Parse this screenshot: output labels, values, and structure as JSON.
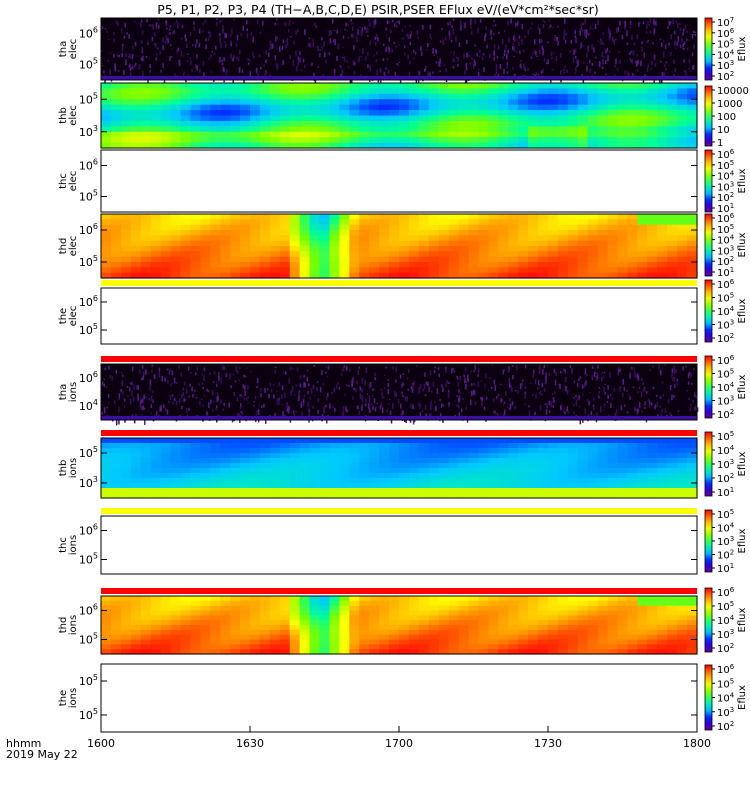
{
  "title": "P5, P1, P2, P3, P4 (TH−A,B,C,D,E) PSIR,PSER EFlux eV/(eV*cm²*sec*sr)",
  "time_axis": {
    "label": "hhmm",
    "date": "2019 May 22",
    "ticks": [
      "1600",
      "1630",
      "1700",
      "1730",
      "1800"
    ]
  },
  "colorbar_label": "Eflux",
  "chart_data": {
    "type": "heatmap",
    "x_range": [
      "16:00",
      "18:00"
    ],
    "colormap": "rainbow (purple → blue → cyan → green → yellow → red), log scale",
    "y_scale": "log",
    "panels": [
      {
        "ylabel": [
          "tha",
          "elec"
        ],
        "ytick_exps": [
          6,
          5
        ],
        "pattern": "noise",
        "bar": null,
        "colorbar": {
          "labels": [
            "10^7",
            "10^6",
            "10^5",
            "10^4",
            "10^3",
            "10^2"
          ],
          "show_eflux": true
        }
      },
      {
        "ylabel": [
          "thb",
          "elec"
        ],
        "ytick_exps": [
          5,
          3
        ],
        "pattern": "thb_elec",
        "bar": null,
        "colorbar": {
          "labels": [
            "10000",
            "1000",
            "100",
            "10",
            "1"
          ],
          "show_eflux": false
        }
      },
      {
        "ylabel": [
          "thc",
          "elec"
        ],
        "ytick_exps": [
          6,
          5
        ],
        "pattern": "empty",
        "bar": null,
        "colorbar": {
          "labels": [
            "10^6",
            "10^5",
            "10^4",
            "10^3",
            "10^2",
            "10^1"
          ],
          "show_eflux": true
        }
      },
      {
        "ylabel": [
          "thd",
          "elec"
        ],
        "ytick_exps": [
          6,
          5
        ],
        "pattern": "thd",
        "bar": null,
        "colorbar": {
          "labels": [
            "10^6",
            "10^5",
            "10^4",
            "10^3",
            "10^2",
            "10^1"
          ],
          "show_eflux": true
        }
      },
      {
        "ylabel": [
          "the",
          "elec"
        ],
        "ytick_exps": [
          6,
          5
        ],
        "pattern": "empty",
        "bar": "#ffff00",
        "colorbar": {
          "labels": [
            "10^6",
            "10^5",
            "10^4",
            "10^3",
            "10^2"
          ],
          "show_eflux": true
        }
      },
      {
        "ylabel": [
          "tha",
          "ions"
        ],
        "ytick_exps": [
          6,
          4
        ],
        "pattern": "noise",
        "bar": "#ff0000",
        "colorbar": {
          "labels": [
            "10^6",
            "10^5",
            "10^4",
            "10^3",
            "10^2"
          ],
          "show_eflux": true
        }
      },
      {
        "ylabel": [
          "thb",
          "ions"
        ],
        "ytick_exps": [
          5,
          3
        ],
        "pattern": "thb_ions",
        "bar": "#ff0000",
        "colorbar": {
          "labels": [
            "10^5",
            "10^4",
            "10^3",
            "10^2",
            "10^1"
          ],
          "show_eflux": true
        }
      },
      {
        "ylabel": [
          "thc",
          "ions"
        ],
        "ytick_exps": [
          6,
          5
        ],
        "pattern": "empty",
        "bar": "#ffff00",
        "colorbar": {
          "labels": [
            "10^5",
            "10^4",
            "10^3",
            "10^2",
            "10^1"
          ],
          "show_eflux": true
        }
      },
      {
        "ylabel": [
          "thd",
          "ions"
        ],
        "ytick_exps": [
          6,
          5
        ],
        "pattern": "thd",
        "bar": "#ff0000",
        "colorbar": {
          "labels": [
            "10^6",
            "10^5",
            "10^4",
            "10^3",
            "10^2"
          ],
          "show_eflux": true
        }
      },
      {
        "ylabel": [
          "the",
          "ions"
        ],
        "ytick_exps": [
          5,
          5
        ],
        "pattern": "empty",
        "bar": null,
        "colorbar": {
          "labels": [
            "10^6",
            "10^5",
            "10^4",
            "10^3",
            "10^2"
          ],
          "show_eflux": true
        }
      }
    ]
  }
}
